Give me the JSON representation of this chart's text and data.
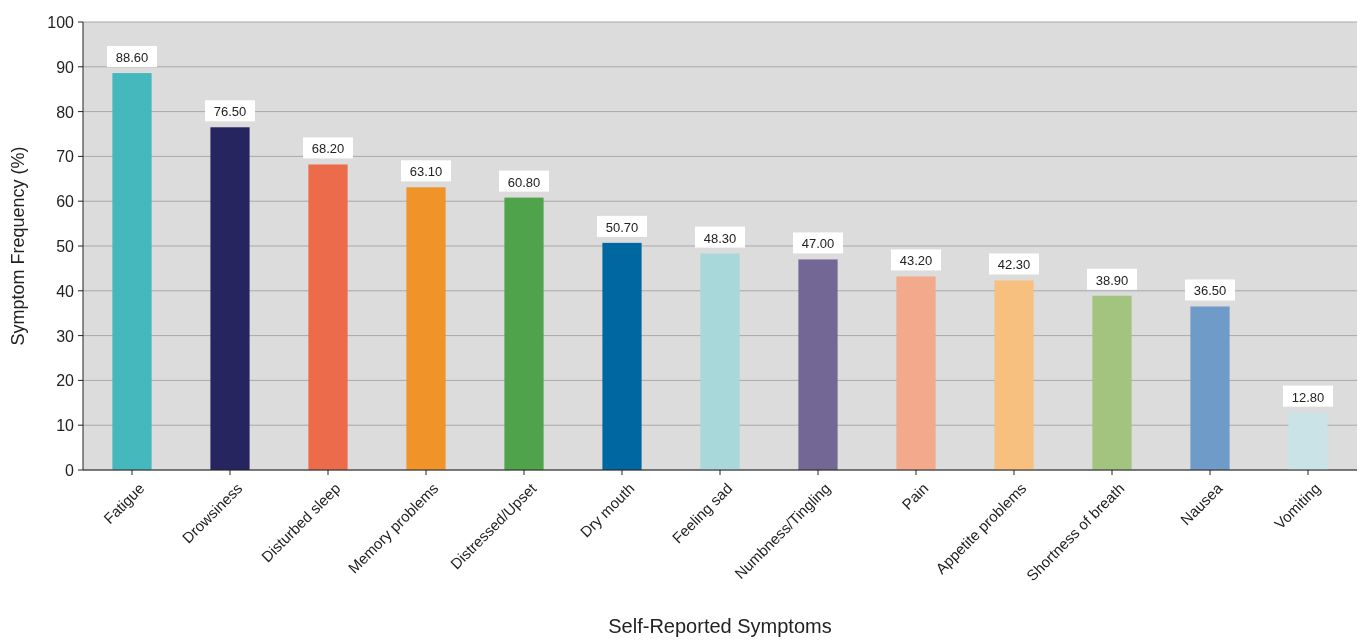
{
  "chart_data": {
    "type": "bar",
    "xlabel": "Self-Reported Symptoms",
    "ylabel": "Symptom Frequency (%)",
    "categories": [
      "Fatigue",
      "Drowsiness",
      "Disturbed sleep",
      "Memory problems",
      "Distressed/Upset",
      "Dry mouth",
      "Feeling sad",
      "Numbness/Tingling",
      "Pain",
      "Appetite problems",
      "Shortness of breath",
      "Nausea",
      "Vomiting"
    ],
    "values": [
      88.6,
      76.5,
      68.2,
      63.1,
      60.8,
      50.7,
      48.3,
      47.0,
      43.2,
      42.3,
      38.9,
      36.5,
      12.8
    ],
    "value_labels": [
      "88.60",
      "76.50",
      "68.20",
      "63.10",
      "60.80",
      "50.70",
      "48.30",
      "47.00",
      "43.20",
      "42.30",
      "38.90",
      "36.50",
      "12.80"
    ],
    "colors": [
      "#45b8bd",
      "#272560",
      "#ec6b4b",
      "#f0942a",
      "#4fa34a",
      "#0067a0",
      "#a8d8d9",
      "#736796",
      "#f2a98c",
      "#f7c07e",
      "#a3c47f",
      "#6e9bc7",
      "#c9e3e6"
    ],
    "ylim": [
      0,
      100
    ],
    "yticks": [
      0,
      10,
      20,
      30,
      40,
      50,
      60,
      70,
      80,
      90,
      100
    ],
    "grid": "y"
  }
}
